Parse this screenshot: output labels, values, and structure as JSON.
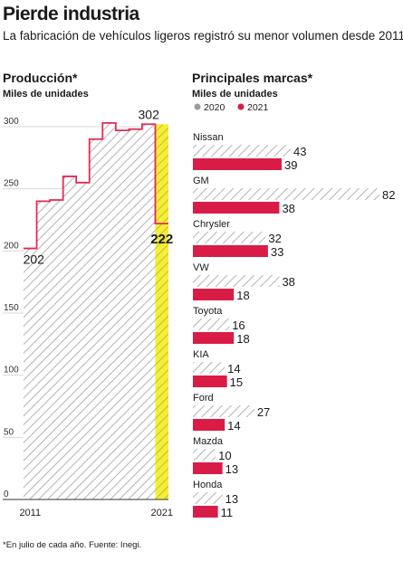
{
  "header": {
    "title": "Pierde industria",
    "subtitle": "La fabricación de vehículos ligeros registró su menor volumen desde 2011"
  },
  "production": {
    "title": "Producción*",
    "subtitle": "Miles de unidades"
  },
  "brands": {
    "title": "Principales marcas*",
    "subtitle": "Miles de unidades",
    "legend": [
      "2020",
      "2021"
    ]
  },
  "footnote": "*En julio de cada año. Fuente: Inegi.",
  "colors": {
    "highlight": "#f5ee3a",
    "line": "#e32b54",
    "bar2021": "#d91c46",
    "hatch": "#9a9a9a",
    "text": "#1a1a1a"
  },
  "chart_data": [
    {
      "type": "area",
      "title": "Producción*",
      "ylabel": "Miles de unidades",
      "x": [
        "2011",
        "2012",
        "2013",
        "2014",
        "2015",
        "2016",
        "2017",
        "2018",
        "2019",
        "2020",
        "2021"
      ],
      "values": [
        202,
        240,
        241,
        260,
        255,
        290,
        303,
        297,
        298,
        302,
        222
      ],
      "xticks": [
        "2011",
        "2021"
      ],
      "yticks": [
        0,
        50,
        100,
        150,
        200,
        250,
        300
      ],
      "ylim": [
        0,
        300
      ],
      "annotations": [
        {
          "x": "2011",
          "label": "202"
        },
        {
          "x": "2020",
          "label": "302"
        },
        {
          "x": "2021",
          "label": "222"
        }
      ],
      "highlight": "2021",
      "grid": true
    },
    {
      "type": "bar",
      "orientation": "horizontal",
      "title": "Principales marcas*",
      "ylabel": "Miles de unidades",
      "categories": [
        "Nissan",
        "GM",
        "Chrysler",
        "VW",
        "Toyota",
        "KIA",
        "Ford",
        "Mazda",
        "Honda"
      ],
      "series": [
        {
          "name": "2020",
          "values": [
            43,
            82,
            32,
            38,
            16,
            14,
            27,
            10,
            13
          ]
        },
        {
          "name": "2021",
          "values": [
            39,
            38,
            33,
            18,
            18,
            15,
            14,
            13,
            11
          ]
        }
      ],
      "legend": "top"
    }
  ]
}
